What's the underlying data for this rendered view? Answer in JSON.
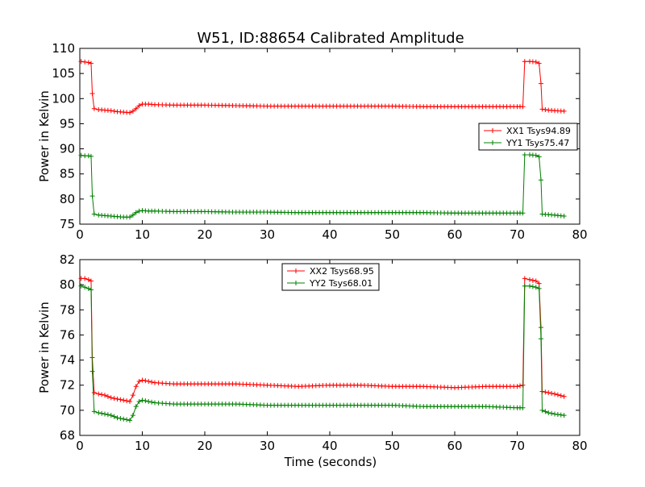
{
  "figure": {
    "title": "W51, ID:88654 Calibrated Amplitude",
    "xlabel": "Time (seconds)"
  },
  "chart_data": [
    {
      "type": "line",
      "title": "W51, ID:88654 Calibrated Amplitude",
      "xlabel": "",
      "ylabel": "Power in Kelvin",
      "xlim": [
        0,
        80
      ],
      "ylim": [
        75,
        110
      ],
      "xticks": [
        "0",
        "10",
        "20",
        "30",
        "40",
        "50",
        "60",
        "70",
        "80"
      ],
      "yticks": [
        "75",
        "80",
        "85",
        "90",
        "95",
        "100",
        "105",
        "110"
      ],
      "grid": false,
      "legend_position": "center-right",
      "marker": "plus",
      "series": [
        {
          "name": "XX1 Tsys94.89",
          "color": "#ff0000",
          "x": [
            0.2,
            0.8,
            1.4,
            1.8,
            2.0,
            2.3,
            3,
            4,
            5,
            6,
            7,
            8,
            8.5,
            9,
            9.5,
            10,
            11,
            12,
            15,
            20,
            25,
            30,
            35,
            40,
            45,
            50,
            55,
            60,
            65,
            70,
            70.9,
            71.2,
            72,
            73,
            73.5,
            73.8,
            74,
            75,
            76,
            77.5
          ],
          "y": [
            107.4,
            107.3,
            107.2,
            107.0,
            101.0,
            98.0,
            97.8,
            97.7,
            97.6,
            97.4,
            97.3,
            97.2,
            97.5,
            98.0,
            98.6,
            98.9,
            98.9,
            98.8,
            98.7,
            98.7,
            98.6,
            98.5,
            98.5,
            98.5,
            98.5,
            98.5,
            98.4,
            98.4,
            98.4,
            98.4,
            98.4,
            107.4,
            107.4,
            107.3,
            107.0,
            103.0,
            97.9,
            97.7,
            97.6,
            97.5
          ]
        },
        {
          "name": "YY1 Tsys75.47",
          "color": "#008000",
          "x": [
            0.2,
            0.8,
            1.4,
            1.8,
            2.0,
            2.3,
            3,
            4,
            5,
            6,
            7,
            8,
            8.5,
            9,
            9.5,
            10,
            11,
            12,
            15,
            20,
            25,
            30,
            35,
            40,
            45,
            50,
            55,
            60,
            65,
            70,
            70.9,
            71.2,
            72,
            73,
            73.5,
            73.8,
            74,
            75,
            76,
            77.5
          ],
          "y": [
            88.7,
            88.6,
            88.6,
            88.5,
            80.6,
            77.0,
            76.8,
            76.7,
            76.6,
            76.5,
            76.4,
            76.4,
            76.8,
            77.3,
            77.6,
            77.7,
            77.6,
            77.6,
            77.5,
            77.5,
            77.4,
            77.4,
            77.3,
            77.3,
            77.3,
            77.3,
            77.3,
            77.2,
            77.2,
            77.2,
            77.2,
            88.8,
            88.8,
            88.7,
            88.4,
            83.8,
            77.0,
            76.9,
            76.8,
            76.6
          ]
        }
      ]
    },
    {
      "type": "line",
      "title": "",
      "xlabel": "Time (seconds)",
      "ylabel": "Power in Kelvin",
      "xlim": [
        0,
        80
      ],
      "ylim": [
        68,
        82
      ],
      "xticks": [
        "0",
        "10",
        "20",
        "30",
        "40",
        "50",
        "60",
        "70",
        "80"
      ],
      "yticks": [
        "68",
        "70",
        "72",
        "74",
        "76",
        "78",
        "80",
        "82"
      ],
      "grid": false,
      "legend_position": "top-center",
      "marker": "plus",
      "series": [
        {
          "name": "XX2 Tsys68.95",
          "color": "#ff0000",
          "x": [
            0.2,
            0.8,
            1.4,
            1.8,
            2.0,
            2.3,
            3,
            4,
            5,
            6,
            7,
            8,
            8.5,
            9,
            9.5,
            10,
            11,
            12,
            15,
            20,
            25,
            30,
            35,
            40,
            45,
            50,
            55,
            60,
            65,
            70,
            70.9,
            71.2,
            72,
            73,
            73.5,
            73.8,
            74,
            75,
            76,
            77.5
          ],
          "y": [
            80.5,
            80.5,
            80.4,
            80.3,
            74.2,
            71.4,
            71.3,
            71.2,
            71.0,
            70.9,
            70.8,
            70.7,
            71.2,
            71.9,
            72.3,
            72.4,
            72.3,
            72.2,
            72.1,
            72.1,
            72.1,
            72.0,
            71.9,
            72.0,
            72.0,
            71.9,
            71.9,
            71.8,
            71.9,
            71.9,
            72.0,
            80.5,
            80.4,
            80.3,
            80.1,
            76.6,
            71.5,
            71.4,
            71.3,
            71.1
          ]
        },
        {
          "name": "YY2 Tsys68.01",
          "color": "#008000",
          "x": [
            0.2,
            0.8,
            1.4,
            1.8,
            2.0,
            2.3,
            3,
            4,
            5,
            6,
            7,
            8,
            8.5,
            9,
            9.5,
            10,
            11,
            12,
            15,
            20,
            25,
            30,
            35,
            40,
            45,
            50,
            55,
            60,
            65,
            70,
            70.9,
            71.2,
            72,
            73,
            73.5,
            73.8,
            74,
            75,
            76,
            77.5
          ],
          "y": [
            79.9,
            79.8,
            79.7,
            79.6,
            73.1,
            69.9,
            69.8,
            69.7,
            69.6,
            69.4,
            69.3,
            69.2,
            69.6,
            70.3,
            70.7,
            70.8,
            70.7,
            70.6,
            70.5,
            70.5,
            70.5,
            70.4,
            70.4,
            70.4,
            70.4,
            70.4,
            70.3,
            70.3,
            70.3,
            70.2,
            70.2,
            79.9,
            79.9,
            79.8,
            79.7,
            75.7,
            70.0,
            69.8,
            69.7,
            69.6
          ]
        }
      ]
    }
  ]
}
